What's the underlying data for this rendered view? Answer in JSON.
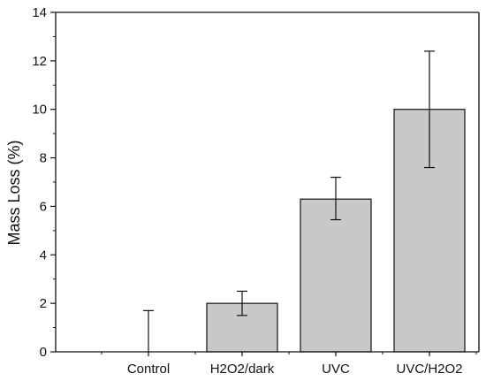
{
  "chart_data": {
    "type": "bar",
    "title": "",
    "xlabel": "",
    "ylabel": "Mass Loss (%)",
    "categories": [
      "Control",
      "H2O2/dark",
      "UVC",
      "UVC/H2O2"
    ],
    "values": [
      0,
      2.0,
      6.3,
      10.0
    ],
    "error_upper": [
      1.7,
      2.5,
      7.2,
      12.4
    ],
    "error_lower": [
      0,
      1.5,
      5.45,
      7.6
    ],
    "ylim": [
      0,
      14
    ],
    "y_ticks": [
      "0",
      "2",
      "4",
      "6",
      "8",
      "10",
      "12",
      "14"
    ],
    "grid": false,
    "legend": "none",
    "colors": {
      "bar_fill": "#c8c8c8",
      "bar_stroke": "#111111",
      "axis": "#111111"
    }
  }
}
